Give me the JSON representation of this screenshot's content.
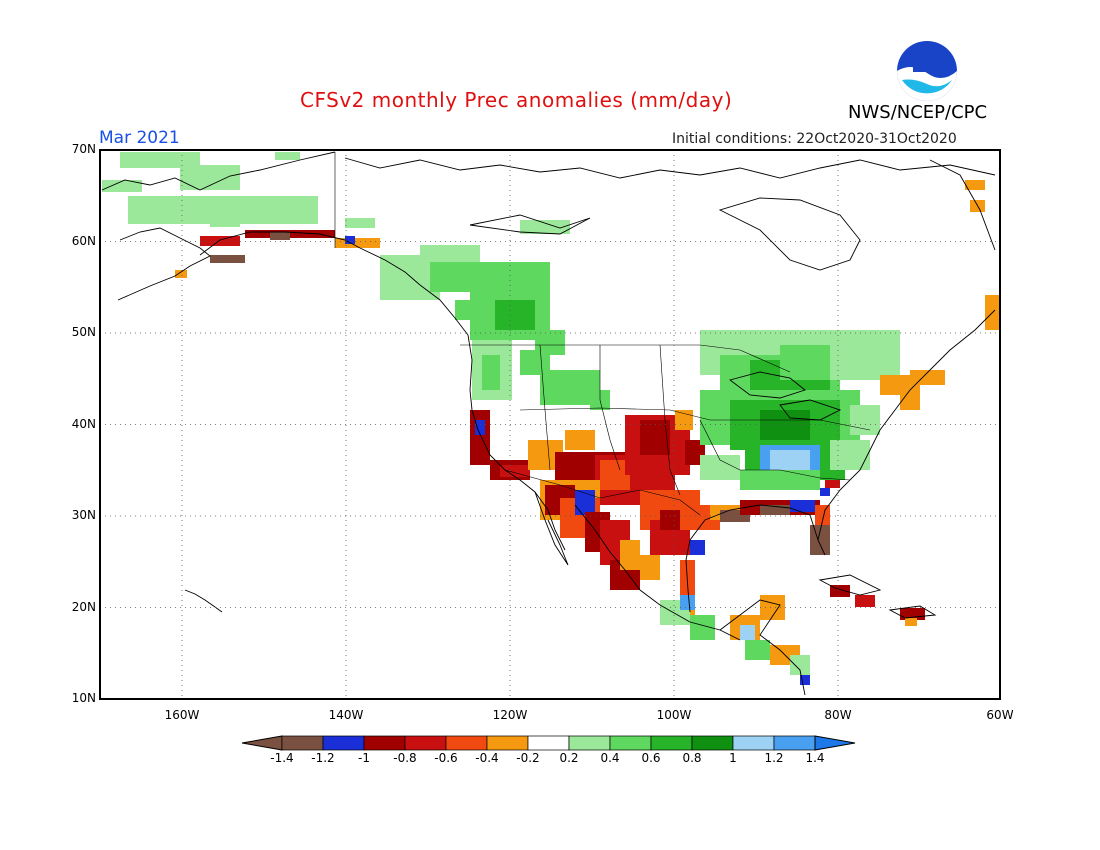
{
  "title": "CFSv2 monthly Prec anomalies (mm/day)",
  "month": "Mar 2021",
  "initial_conditions": "Initial conditions: 22Oct2020-31Oct2020",
  "agency": "NWS/NCEP/CPC",
  "logo_icon": "noaa-logo-icon",
  "axes": {
    "lat_labels": [
      "70N",
      "60N",
      "50N",
      "40N",
      "30N",
      "20N",
      "10N"
    ],
    "lon_labels": [
      "160W",
      "140W",
      "120W",
      "100W",
      "80W",
      "60W"
    ]
  },
  "colorbar": {
    "labels": [
      "-1.4",
      "-1.2",
      "-1",
      "-0.8",
      "-0.6",
      "-0.4",
      "-0.2",
      "0.2",
      "0.4",
      "0.6",
      "0.8",
      "1",
      "1.2",
      "1.4"
    ],
    "colors": [
      "#8c6a5a",
      "#7a5040",
      "#1a2fd8",
      "#a00000",
      "#c81010",
      "#f04a10",
      "#f59a10",
      "#ffffff",
      "#9be89b",
      "#5ed85e",
      "#28b428",
      "#109010",
      "#9dd2f5",
      "#4aa0f0",
      "#1e78e8"
    ]
  },
  "anomaly_colors": {
    "brown": "#7a5040",
    "blue_dry": "#1a2fd8",
    "dark_red": "#a00000",
    "red": "#c81010",
    "orange_red": "#f04a10",
    "orange": "#f59a10",
    "light_green": "#9be89b",
    "green": "#5ed85e",
    "mid_green": "#28b428",
    "dark_green": "#109010",
    "light_blue": "#9dd2f5",
    "blue_wet": "#4aa0f0"
  }
}
